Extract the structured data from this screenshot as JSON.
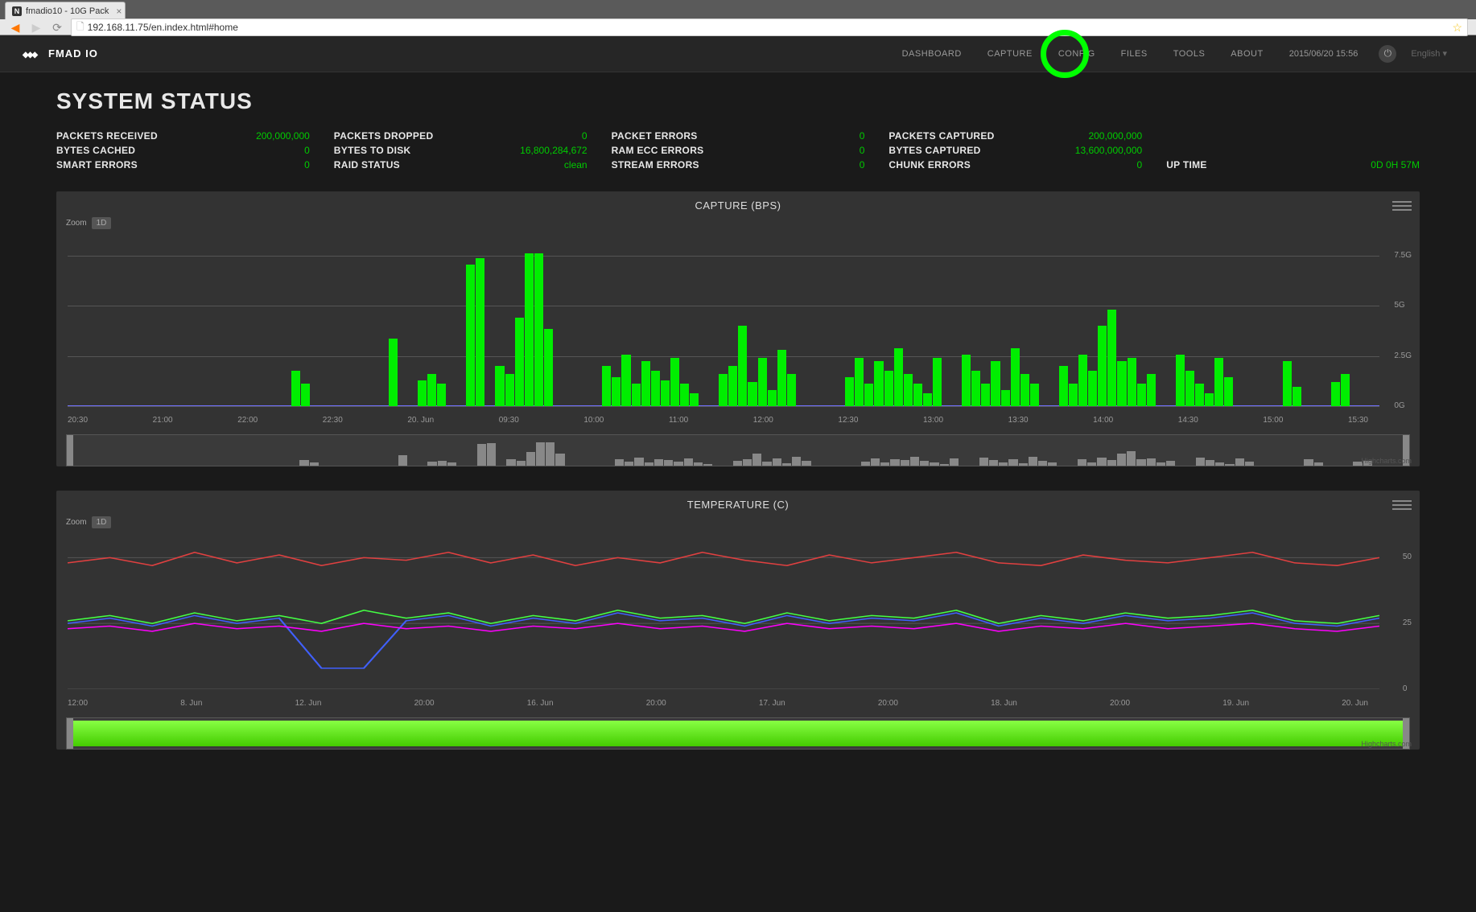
{
  "browser": {
    "tab_title": "fmadio10 - 10G Pack",
    "url": "192.168.11.75/en.index.html#home"
  },
  "header": {
    "brand": "FMAD IO",
    "nav": [
      "DASHBOARD",
      "CAPTURE",
      "CONFIG",
      "FILES",
      "TOOLS",
      "ABOUT"
    ],
    "datetime": "2015/06/20 15:56",
    "language": "English",
    "highlight_index": 2
  },
  "page_title": "SYSTEM STATUS",
  "stats": {
    "col0": [
      {
        "label": "PACKETS RECEIVED",
        "value": "200,000,000"
      },
      {
        "label": "BYTES CACHED",
        "value": "0"
      },
      {
        "label": "SMART ERRORS",
        "value": "0"
      }
    ],
    "col1": [
      {
        "label": "PACKETS DROPPED",
        "value": "0"
      },
      {
        "label": "BYTES TO DISK",
        "value": "16,800,284,672"
      },
      {
        "label": "RAID STATUS",
        "value": "clean"
      }
    ],
    "col2": [
      {
        "label": "PACKET ERRORS",
        "value": "0"
      },
      {
        "label": "RAM ECC ERRORS",
        "value": "0"
      },
      {
        "label": "STREAM ERRORS",
        "value": "0"
      }
    ],
    "col3": [
      {
        "label": "PACKETS CAPTURED",
        "value": "200,000,000"
      },
      {
        "label": "BYTES CAPTURED",
        "value": "13,600,000,000"
      },
      {
        "label": "CHUNK ERRORS",
        "value": "0"
      }
    ],
    "uptime": {
      "label": "UP TIME",
      "value": "0D 0H 57M"
    }
  },
  "chart1": {
    "title": "CAPTURE (BPS)",
    "zoom_label": "Zoom",
    "zoom_option": "1D",
    "y_ticks": [
      "7.5G",
      "5G",
      "2.5G",
      "0G"
    ],
    "y_values": [
      7.5,
      5,
      2.5,
      0
    ],
    "ylim": [
      0,
      8
    ],
    "x_ticks": [
      "20:30",
      "21:00",
      "22:00",
      "22:30",
      "20. Jun",
      "09:30",
      "10:00",
      "11:00",
      "12:00",
      "12:30",
      "13:00",
      "13:30",
      "14:00",
      "14:30",
      "15:00",
      "15:30"
    ],
    "bar_color": "#00ee00",
    "baseline_color": "#7070ff",
    "grid_color": "#555555",
    "bg_color": "#333333",
    "bars_pct": [
      0,
      0,
      0,
      0,
      0,
      0,
      0,
      0,
      0,
      0,
      0,
      0,
      0,
      0,
      0,
      0,
      0,
      0,
      0,
      0,
      0,
      0,
      0,
      22,
      14,
      0,
      0,
      0,
      0,
      0,
      0,
      0,
      0,
      42,
      0,
      0,
      16,
      20,
      14,
      0,
      0,
      88,
      92,
      0,
      25,
      20,
      55,
      95,
      95,
      48,
      0,
      0,
      0,
      0,
      0,
      25,
      18,
      32,
      14,
      28,
      22,
      16,
      30,
      14,
      8,
      0,
      0,
      20,
      25,
      50,
      15,
      30,
      10,
      35,
      20,
      0,
      0,
      0,
      0,
      0,
      18,
      30,
      14,
      28,
      22,
      36,
      20,
      14,
      8,
      30,
      0,
      0,
      32,
      22,
      14,
      28,
      10,
      36,
      20,
      14,
      0,
      0,
      25,
      14,
      32,
      22,
      50,
      60,
      28,
      30,
      14,
      20,
      0,
      0,
      32,
      22,
      14,
      8,
      30,
      18,
      0,
      0,
      0,
      0,
      0,
      28,
      12,
      0,
      0,
      0,
      15,
      20,
      0,
      0,
      0
    ]
  },
  "chart2": {
    "title": "TEMPERATURE (C)",
    "zoom_label": "Zoom",
    "zoom_option": "1D",
    "y_ticks": [
      "50",
      "25",
      "0"
    ],
    "ylim": [
      0,
      55
    ],
    "x_ticks": [
      "12:00",
      "8. Jun",
      "12. Jun",
      "20:00",
      "16. Jun",
      "20:00",
      "17. Jun",
      "20:00",
      "18. Jun",
      "20:00",
      "19. Jun",
      "20. Jun"
    ],
    "grid_color": "#555555",
    "bg_color": "#333333",
    "series": {
      "red": {
        "color": "#e04040",
        "points": [
          48,
          50,
          47,
          52,
          48,
          51,
          47,
          50,
          49,
          52,
          48,
          51,
          47,
          50,
          48,
          52,
          49,
          47,
          51,
          48,
          50,
          52,
          48,
          47,
          51,
          49,
          48,
          50,
          52,
          48,
          47,
          50
        ]
      },
      "green": {
        "color": "#44ff44",
        "points": [
          26,
          28,
          25,
          29,
          26,
          28,
          25,
          30,
          27,
          29,
          25,
          28,
          26,
          30,
          27,
          28,
          25,
          29,
          26,
          28,
          27,
          30,
          25,
          28,
          26,
          29,
          27,
          28,
          30,
          26,
          25,
          28
        ]
      },
      "blue": {
        "color": "#4060ff",
        "points": [
          25,
          27,
          24,
          28,
          25,
          27,
          8,
          8,
          26,
          28,
          24,
          27,
          25,
          29,
          26,
          27,
          24,
          28,
          25,
          27,
          26,
          29,
          24,
          27,
          25,
          28,
          26,
          27,
          29,
          25,
          24,
          27
        ]
      },
      "magenta": {
        "color": "#ff00ff",
        "points": [
          23,
          24,
          22,
          25,
          23,
          24,
          22,
          25,
          23,
          24,
          22,
          24,
          23,
          25,
          23,
          24,
          22,
          25,
          23,
          24,
          23,
          25,
          22,
          24,
          23,
          25,
          23,
          24,
          25,
          23,
          22,
          24
        ]
      }
    }
  },
  "colors": {
    "highlight_ring": "#00ff00",
    "value_text": "#00cc00",
    "label_text": "#e8e8e8"
  }
}
